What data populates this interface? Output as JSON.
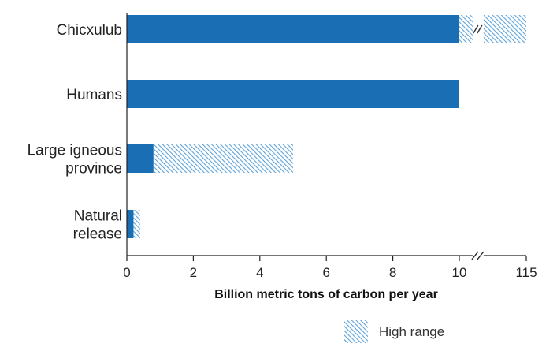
{
  "chart_data": {
    "type": "bar",
    "orientation": "horizontal",
    "stacked": true,
    "categories": [
      "Chicxulub",
      "Humans",
      "Large igneous province",
      "Natural release"
    ],
    "category_label_lines": [
      [
        "Chicxulub"
      ],
      [
        "Humans"
      ],
      [
        "Large igneous",
        "province"
      ],
      [
        "Natural",
        "release"
      ]
    ],
    "series": [
      {
        "key": "low",
        "values": [
          10,
          10,
          0.8,
          0.2
        ]
      },
      {
        "name": "High range",
        "key": "high",
        "values": [
          115,
          null,
          5,
          0.4
        ]
      }
    ],
    "xlabel": "Billion metric tons of carbon per year",
    "ylabel": "",
    "xticks": [
      0,
      2,
      4,
      6,
      8,
      10,
      115
    ],
    "xlim": [
      0,
      115
    ],
    "axis_break": {
      "after": 10.4,
      "resume": 114
    },
    "legend": {
      "position": "bottom-right",
      "entries": [
        "High range"
      ]
    },
    "grid": false,
    "colors": {
      "low": "#1a6fb4",
      "high_stripe": "#5fa3d8",
      "high_bg": "#ffffff",
      "axis": "#222222"
    }
  }
}
